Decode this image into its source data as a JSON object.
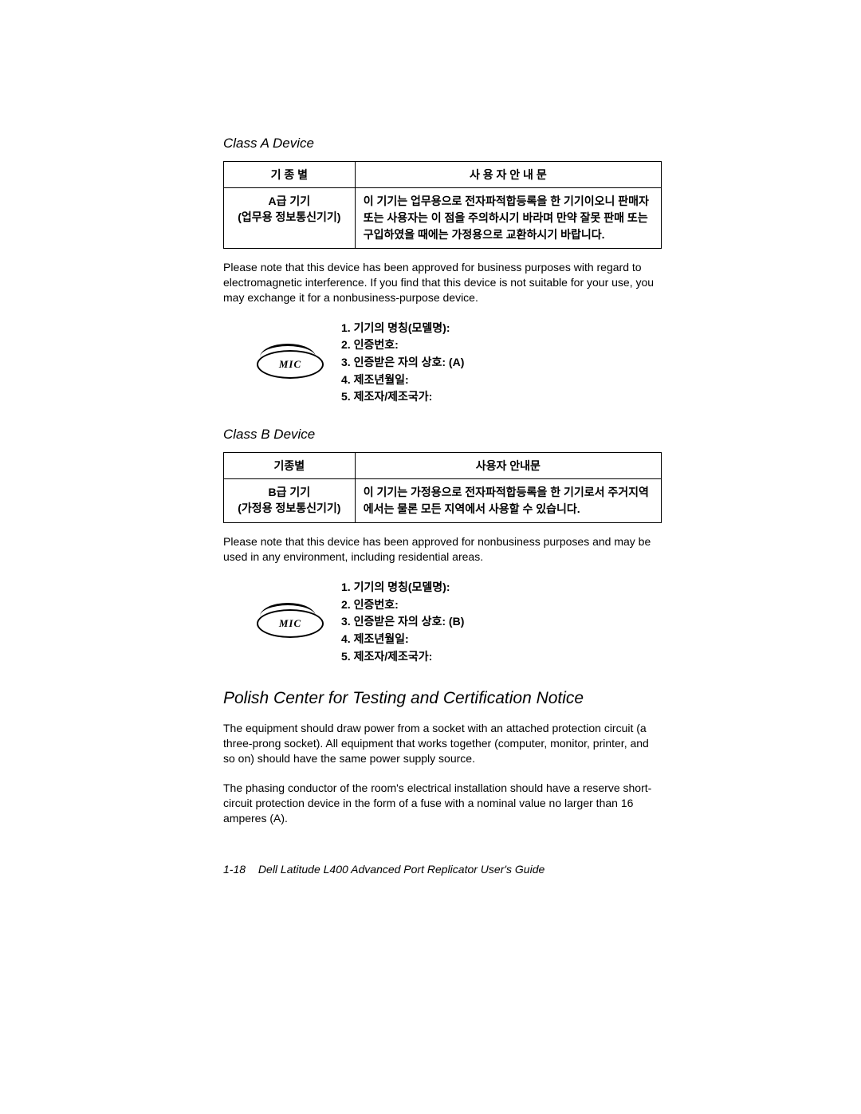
{
  "classA": {
    "heading": "Class A Device",
    "table": {
      "header_left": "기 종 별",
      "header_right": "사 용 자 안 내 문",
      "cell_left_line1": "A급 기기",
      "cell_left_line2": "(업무용 정보통신기기)",
      "cell_right": "이 기기는 업무용으로 전자파적합등록을 한 기기이오니 판매자 또는 사용자는 이 점을 주의하시기 바라며 만약 잘못 판매 또는 구입하였을 때에는 가정용으로 교환하시기 바랍니다."
    },
    "note": "Please note that this device has been approved for business purposes with regard to electromagnetic interference. If you find that this device is not suitable for your use, you may exchange it for a nonbusiness-purpose device.",
    "mic": {
      "logo_text": "MIC",
      "items": {
        "i1": "1. 기기의 명칭(모델명):",
        "i2": "2. 인증번호:",
        "i3": "3. 인증받은 자의 상호:  (A)",
        "i4": "4. 제조년월일:",
        "i5": "5. 제조자/제조국가:"
      }
    }
  },
  "classB": {
    "heading": "Class B Device",
    "table": {
      "header_left": "기종별",
      "header_right": "사용자 안내문",
      "cell_left_line1": "B급 기기",
      "cell_left_line2": "(가정용 정보통신기기)",
      "cell_right": "이 기기는 가정용으로 전자파적합등록을 한 기기로서 주거지역에서는 물론 모든 지역에서 사용할 수 있습니다."
    },
    "note": "Please note that this device has been approved for nonbusiness purposes and may be used in any environment, including residential areas.",
    "mic": {
      "logo_text": "MIC",
      "items": {
        "i1": "1. 기기의 명칭(모델명):",
        "i2": "2. 인증번호:",
        "i3": "3. 인증받은 자의 상호: (B)",
        "i4": "4. 제조년월일:",
        "i5": "5. 제조자/제조국가:"
      }
    }
  },
  "polish": {
    "heading": "Polish Center for Testing and Certification Notice",
    "p1": "The equipment should draw power from a socket with an attached protection circuit (a three-prong socket). All equipment that works together (computer, monitor, printer, and so on) should have the same power supply source.",
    "p2": "The phasing conductor of the room's electrical installation should have a reserve short-circuit protection device in the form of a fuse with a nominal value no larger than 16 amperes (A)."
  },
  "footer": {
    "pagenum": "1-18",
    "title": "Dell Latitude L400 Advanced Port Replicator User's Guide"
  }
}
